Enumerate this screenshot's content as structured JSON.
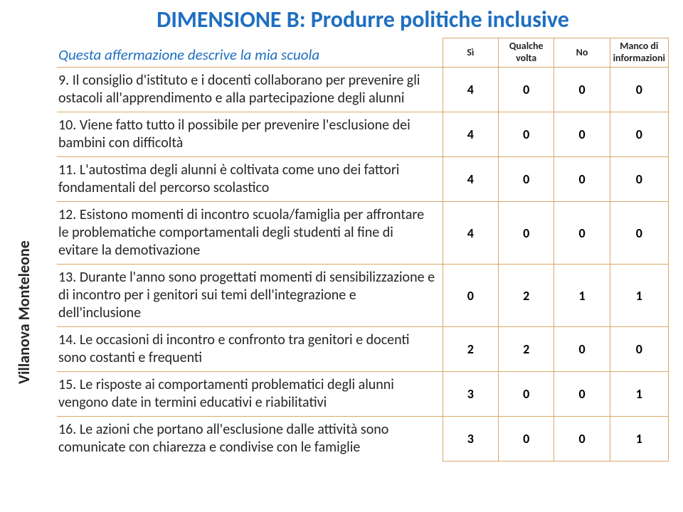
{
  "sidelabel": "Villanova   Monteleone",
  "title": "DIMENSIONE B: Produrre politiche inclusive",
  "headers": {
    "statement": "Questa affermazione descrive la mia scuola",
    "c1": "Sì",
    "c2": "Qualche volta",
    "c3": "No",
    "c4": "Manco di informazioni"
  },
  "rows": [
    {
      "text": "9. Il consiglio d'istituto e i docenti collaborano per prevenire gli ostacoli all'apprendimento e alla partecipazione degli alunni",
      "v": [
        "4",
        "0",
        "0",
        "0"
      ]
    },
    {
      "text": "10. Viene fatto tutto il possibile per prevenire l'esclusione dei bambini con difficoltà",
      "v": [
        "4",
        "0",
        "0",
        "0"
      ]
    },
    {
      "text": "11. L'autostima degli alunni è coltivata come uno dei fattori fondamentali del percorso scolastico",
      "v": [
        "4",
        "0",
        "0",
        "0"
      ]
    },
    {
      "text": "12. Esistono momenti di incontro scuola/famiglia per affrontare le problematiche comportamentali degli studenti al fine di evitare la demotivazione",
      "v": [
        "4",
        "0",
        "0",
        "0"
      ]
    },
    {
      "text": "13. Durante l'anno sono progettati momenti di sensibilizzazione e di incontro per i genitori sui temi dell'integrazione e dell'inclusione",
      "v": [
        "0",
        "2",
        "1",
        "1"
      ]
    },
    {
      "text": "14. Le occasioni di incontro e confronto tra genitori e docenti sono costanti e frequenti",
      "v": [
        "2",
        "2",
        "0",
        "0"
      ]
    },
    {
      "text": "15. Le risposte ai comportamenti problematici degli alunni vengono date in termini educativi e riabilitativi",
      "v": [
        "3",
        "0",
        "0",
        "1"
      ]
    },
    {
      "text": "16. Le azioni che portano all'esclusione dalle attività sono comunicate con chiarezza e condivise con le famiglie",
      "v": [
        "3",
        "0",
        "0",
        "1"
      ]
    }
  ],
  "colors": {
    "accent": "#1f6fc2",
    "border": "#d9a86a",
    "text": "#262626",
    "background": "#ffffff"
  },
  "fontsizes": {
    "title": 32,
    "header_statement": 21,
    "header_col": 14,
    "row_text": 20,
    "cell": 18,
    "sidelabel": 22
  }
}
